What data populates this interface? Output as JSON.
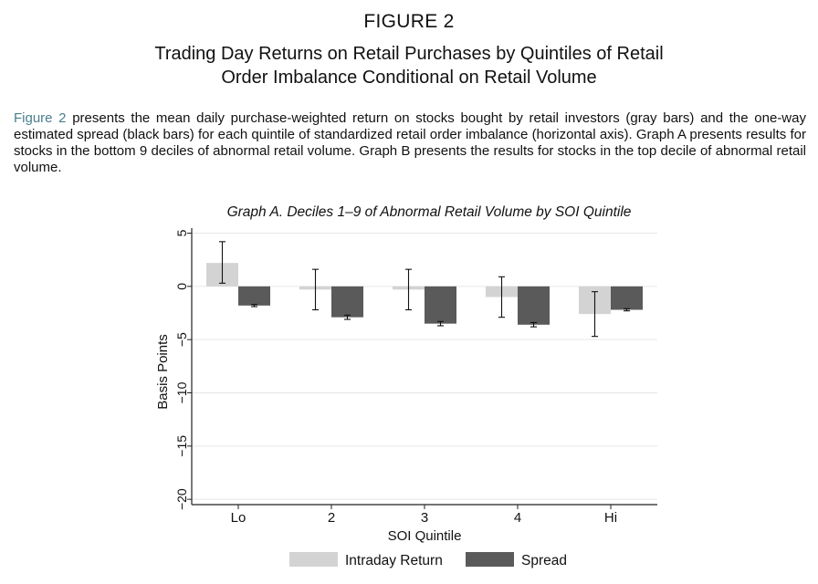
{
  "figure": {
    "label": "FIGURE 2",
    "title_line1": "Trading Day Returns on Retail Purchases by Quintiles of Retail",
    "title_line2": "Order Imbalance Conditional on Retail Volume"
  },
  "caption": {
    "ref": "Figure 2",
    "text": " presents the mean daily purchase-weighted return on stocks bought by retail investors (gray bars) and the one-way estimated spread (black bars) for each quintile of standardized retail order imbalance (horizontal axis). Graph A presents results for stocks in the bottom 9 deciles of abnormal retail volume. Graph B presents the results for stocks in the top decile of abnormal retail volume."
  },
  "chart_data": {
    "type": "bar",
    "title": "Graph A. Deciles 1–9 of Abnormal Retail Volume by SOI Quintile",
    "xlabel": "SOI Quintile",
    "ylabel": "Basis Points",
    "categories": [
      "Lo",
      "2",
      "3",
      "4",
      "Hi"
    ],
    "ylim": [
      -20.5,
      5.3
    ],
    "yticks": [
      5,
      0,
      -5,
      -10,
      -15,
      -20
    ],
    "grid": true,
    "legend_position": "bottom",
    "series": [
      {
        "name": "Intraday Return",
        "color": "#d3d3d3",
        "values": [
          2.2,
          -0.3,
          -0.3,
          -1.0,
          -2.6
        ],
        "ci_low": [
          0.3,
          -2.2,
          -2.2,
          -2.9,
          -4.7
        ],
        "ci_high": [
          4.2,
          1.6,
          1.6,
          0.9,
          -0.5
        ]
      },
      {
        "name": "Spread",
        "color": "#5a5a5a",
        "values": [
          -1.8,
          -2.9,
          -3.5,
          -3.6,
          -2.2
        ],
        "ci_low": [
          -1.9,
          -3.1,
          -3.7,
          -3.8,
          -2.3
        ],
        "ci_high": [
          -1.7,
          -2.7,
          -3.3,
          -3.4,
          -2.1
        ]
      }
    ]
  }
}
